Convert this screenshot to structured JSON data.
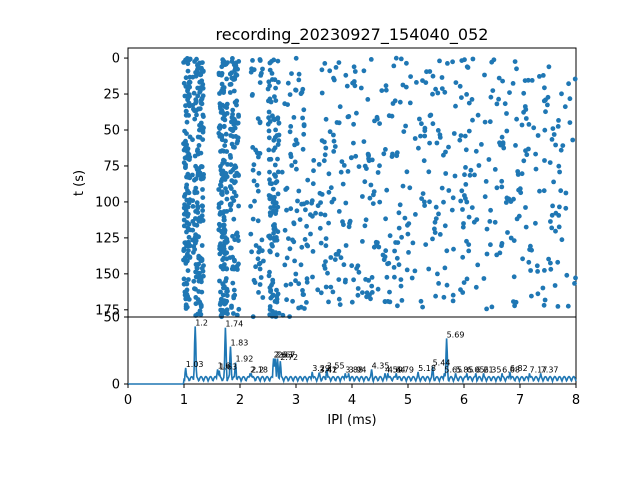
{
  "chart_data": [
    {
      "type": "scatter",
      "title": "recording_20230927_154040_052",
      "ylabel": "t (s)",
      "y_inverted": true,
      "ylim": [
        180,
        -7
      ],
      "xlim": [
        0,
        8
      ],
      "yticks": [
        0,
        25,
        50,
        75,
        100,
        125,
        150,
        175
      ],
      "marker_color": "#1f77b4",
      "x_range_of_points": [
        1.0,
        8.0
      ],
      "y_range_of_points": [
        0,
        180
      ]
    },
    {
      "type": "line",
      "xlabel": "IPI (ms)",
      "xlim": [
        0,
        8
      ],
      "ylim": [
        0,
        50
      ],
      "xticks": [
        0,
        1,
        2,
        3,
        4,
        5,
        6,
        7,
        8
      ],
      "yticks": [
        0,
        50
      ],
      "line_color": "#1f77b4",
      "peaks": [
        {
          "x": 1.03,
          "y": 12,
          "label": "1.03"
        },
        {
          "x": 1.2,
          "y": 43,
          "label": "1.2"
        },
        {
          "x": 1.6,
          "y": 11,
          "label": "1.6"
        },
        {
          "x": 1.63,
          "y": 10,
          "label": "1.63"
        },
        {
          "x": 1.74,
          "y": 42,
          "label": "1.74"
        },
        {
          "x": 1.83,
          "y": 28,
          "label": "1.83"
        },
        {
          "x": 1.92,
          "y": 16,
          "label": "1.92"
        },
        {
          "x": 2.18,
          "y": 8,
          "label": "2.18"
        },
        {
          "x": 2.2,
          "y": 8,
          "label": "2.2"
        },
        {
          "x": 2.6,
          "y": 19,
          "label": "2.6"
        },
        {
          "x": 2.63,
          "y": 19,
          "label": "2.63"
        },
        {
          "x": 2.67,
          "y": 19,
          "label": "2.67"
        },
        {
          "x": 2.72,
          "y": 17,
          "label": "2.72"
        },
        {
          "x": 3.29,
          "y": 9,
          "label": "3.29"
        },
        {
          "x": 3.42,
          "y": 8,
          "label": "3.42"
        },
        {
          "x": 3.41,
          "y": 8,
          "label": "3.41"
        },
        {
          "x": 3.55,
          "y": 11,
          "label": "3.55"
        },
        {
          "x": 3.88,
          "y": 8,
          "label": "3.88"
        },
        {
          "x": 3.94,
          "y": 8,
          "label": "3.94"
        },
        {
          "x": 4.35,
          "y": 11,
          "label": "4.35"
        },
        {
          "x": 4.59,
          "y": 8,
          "label": "4.59"
        },
        {
          "x": 4.64,
          "y": 8,
          "label": "4.64"
        },
        {
          "x": 4.79,
          "y": 8,
          "label": "4.79"
        },
        {
          "x": 5.18,
          "y": 9,
          "label": "5.18"
        },
        {
          "x": 5.44,
          "y": 13,
          "label": "5.44"
        },
        {
          "x": 5.65,
          "y": 8,
          "label": "5.65"
        },
        {
          "x": 5.69,
          "y": 34,
          "label": "5.69"
        },
        {
          "x": 5.85,
          "y": 8,
          "label": "5.85"
        },
        {
          "x": 6.05,
          "y": 8,
          "label": "6.05"
        },
        {
          "x": 6.21,
          "y": 8,
          "label": "6.21"
        },
        {
          "x": 6.35,
          "y": 8,
          "label": "6.35"
        },
        {
          "x": 6.82,
          "y": 9,
          "label": "6.82"
        },
        {
          "x": 6.68,
          "y": 8,
          "label": "6.68"
        },
        {
          "x": 7.17,
          "y": 8,
          "label": "7.17"
        },
        {
          "x": 7.37,
          "y": 8,
          "label": "7.37"
        }
      ]
    }
  ]
}
